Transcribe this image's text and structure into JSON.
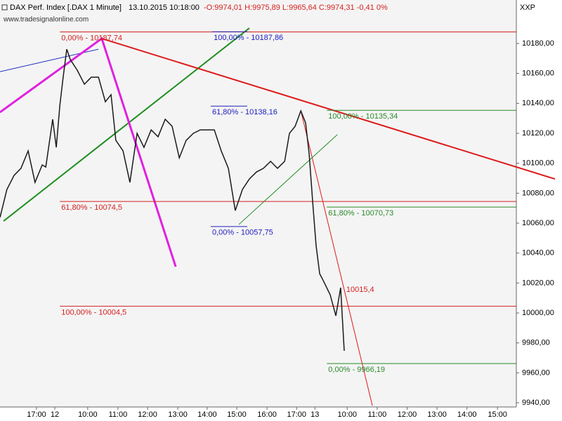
{
  "chart_data": {
    "type": "line",
    "header": {
      "instrument": "DAX Perf. Index [.DAX  1 Minute]",
      "timestamp": "13.10.2015 10:18:00",
      "quote": "-O:9974,01 H:9975,89 L:9965,64 C:9974,31 -0,41 0%"
    },
    "watermark": "www.tradesignalonline.com",
    "axis_label": "XXP",
    "color": "#1a1a1a",
    "x": [
      0,
      0.23,
      0.47,
      0.7,
      0.94,
      1.17,
      1.41,
      1.53,
      1.76,
      1.88,
      2.0,
      2.11,
      2.23,
      2.35,
      2.58,
      2.82,
      3.05,
      3.29,
      3.52,
      3.71,
      3.87,
      4.11,
      4.34,
      4.58,
      4.81,
      5.05,
      5.28,
      5.52,
      5.75,
      5.99,
      6.22,
      6.46,
      6.69,
      6.92,
      7.16,
      7.39,
      7.63,
      7.86,
      8.1,
      8.33,
      8.57,
      8.8,
      9.04,
      9.27,
      9.51,
      9.67,
      9.86,
      10.05,
      10.21,
      10.33,
      10.45,
      10.56,
      10.68,
      10.8,
      11.03,
      11.22,
      11.38,
      11.5
    ],
    "values": [
      10063.8,
      10082.5,
      10091.9,
      10096.6,
      10108.3,
      10087.2,
      10098.9,
      10097.5,
      10129.4,
      10110.6,
      10138.8,
      10157.5,
      10176.2,
      10169.2,
      10162.2,
      10152.8,
      10157.5,
      10157.5,
      10141.1,
      10145.8,
      10115.3,
      10108.3,
      10087.2,
      10120.0,
      10110.6,
      10122.3,
      10117.7,
      10129.4,
      10124.7,
      10103.6,
      10115.3,
      10120.0,
      10122.3,
      10122.3,
      10122.3,
      10108.3,
      10096.6,
      10068.4,
      10082.5,
      10089.5,
      10094.2,
      10096.6,
      10101.3,
      10096.6,
      10101.3,
      10120.0,
      10124.7,
      10135.0,
      10127.0,
      10105.9,
      10073.1,
      10045.0,
      10026.2,
      10021.6,
      10012.2,
      9998.1,
      10016.9,
      9974.7
    ],
    "xlim": [
      0,
      17.25
    ],
    "ylim": [
      9937.2,
      10198.75
    ],
    "xticks": [
      {
        "value": 1.22,
        "label": "17:00"
      },
      {
        "value": 1.83,
        "label": "12"
      },
      {
        "value": 2.93,
        "label": "10:00"
      },
      {
        "value": 3.94,
        "label": "11:00"
      },
      {
        "value": 4.93,
        "label": "12:00"
      },
      {
        "value": 5.94,
        "label": "13:00"
      },
      {
        "value": 6.92,
        "label": "14:00"
      },
      {
        "value": 7.91,
        "label": "15:00"
      },
      {
        "value": 8.92,
        "label": "16:00"
      },
      {
        "value": 9.91,
        "label": "17:00"
      },
      {
        "value": 10.52,
        "label": "13"
      },
      {
        "value": 11.6,
        "label": "10:00"
      },
      {
        "value": 12.6,
        "label": "11:00"
      },
      {
        "value": 13.6,
        "label": "12:00"
      },
      {
        "value": 14.6,
        "label": "13:00"
      },
      {
        "value": 15.6,
        "label": "14:00"
      },
      {
        "value": 16.62,
        "label": "15:00"
      }
    ],
    "yticks": [
      {
        "value": 9940,
        "label": "9940,00"
      },
      {
        "value": 9960,
        "label": "9960,00"
      },
      {
        "value": 9980,
        "label": "9980,00"
      },
      {
        "value": 10000,
        "label": "10000,00"
      },
      {
        "value": 10020,
        "label": "10020,00"
      },
      {
        "value": 10040,
        "label": "10040,00"
      },
      {
        "value": 10060,
        "label": "10060,00"
      },
      {
        "value": 10080,
        "label": "10080,00"
      },
      {
        "value": 10100,
        "label": "10100,00"
      },
      {
        "value": 10120,
        "label": "10120,00"
      },
      {
        "value": 10140,
        "label": "10140,00"
      },
      {
        "value": 10160,
        "label": "10160,00"
      },
      {
        "value": 10180,
        "label": "10180,00"
      }
    ],
    "levels": [
      {
        "label": "0,00% - 10187,74",
        "value": 10187.74,
        "color": "#d42020",
        "x": [
          2.0,
          17.25
        ]
      },
      {
        "label": "100,00% - 10187,86",
        "value": 10187.86,
        "color": "#2020c0",
        "x": [
          7.09,
          8.26
        ]
      },
      {
        "label": "61,80% - 10138,16",
        "value": 10138.16,
        "color": "#2020c0",
        "x": [
          7.04,
          8.26
        ]
      },
      {
        "label": "0,00% - 10057,75",
        "value": 10057.75,
        "color": "#2020c0",
        "x": [
          7.04,
          8.26
        ]
      },
      {
        "label": "61,80% - 10074,5",
        "value": 10074.5,
        "color": "#d42020",
        "x": [
          2.0,
          17.25
        ]
      },
      {
        "label": "100,00% - 10004,5",
        "value": 10004.5,
        "color": "#d42020",
        "x": [
          2.0,
          17.25
        ]
      },
      {
        "label": "100,00% - 10135,34",
        "value": 10135.34,
        "color": "#2a8a2a",
        "x": [
          10.92,
          17.25
        ]
      },
      {
        "label": "61,80% - 10070,73",
        "value": 10070.73,
        "color": "#2a8a2a",
        "x": [
          10.92,
          17.25
        ]
      },
      {
        "label": "0,00% - 9966,19",
        "value": 9966.19,
        "color": "#2a8a2a",
        "x": [
          10.92,
          17.25
        ]
      }
    ],
    "trendlines": [
      {
        "color": "#2030c0",
        "style": "thin",
        "x": [
          0,
          3.29
        ],
        "y": [
          10161.2,
          10176.2
        ]
      },
      {
        "color": "#1f8f1f",
        "style": "medium",
        "x": [
          0.12,
          8.33
        ],
        "y": [
          10061.4,
          10190.3
        ]
      },
      {
        "color": "#e020e0",
        "style": "thick",
        "x": [
          0,
          3.4,
          5.87
        ],
        "y": [
          10134.1,
          10183.3,
          10030.9
        ]
      },
      {
        "color": "#dd1a1a",
        "style": "medium",
        "x": [
          3.4,
          18.54
        ],
        "y": [
          10183.3,
          10089.5
        ]
      },
      {
        "color": "#dd1a1a",
        "style": "thin",
        "x": [
          10.05,
          12.44
        ],
        "y": [
          10135.0,
          9938.1
        ]
      },
      {
        "color": "#1f8f1f",
        "style": "thin",
        "x": [
          7.98,
          11.27
        ],
        "y": [
          10059.1,
          10119.1
        ]
      }
    ],
    "annotation": {
      "text": "10015,4",
      "value": 10015.4,
      "x": 11.38,
      "color": "#d42020"
    }
  }
}
